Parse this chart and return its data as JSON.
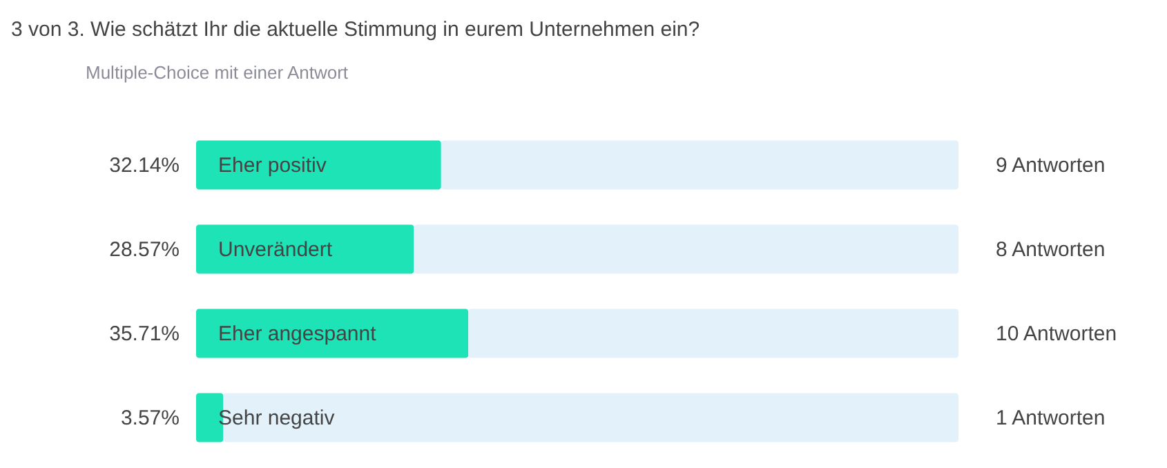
{
  "chart_data": {
    "type": "bar",
    "orientation": "horizontal",
    "stacked": true,
    "title": "3 von 3. Wie schätzt Ihr die aktuelle Stimmung in eurem Unternehmen ein?",
    "subtitle": "Multiple-Choice mit einer Antwort",
    "categories": [
      "Eher positiv",
      "Unverändert",
      "Eher angespannt",
      "Sehr negativ"
    ],
    "xlim": [
      0,
      100
    ],
    "grid": false,
    "tick_labels": false,
    "annotations": [
      "9 Antworten",
      "8 Antworten",
      "10 Antworten",
      "1 Antworten"
    ],
    "series": [
      {
        "color": "#1de3b6",
        "values": [
          32.14,
          28.57,
          35.71,
          3.57
        ],
        "value_labels": [
          "32.14%",
          "28.57%",
          "35.71%",
          "3.57%"
        ]
      },
      {
        "color": "#e3f1fb",
        "values": [
          67.86,
          71.43,
          64.29,
          96.43
        ]
      }
    ]
  }
}
